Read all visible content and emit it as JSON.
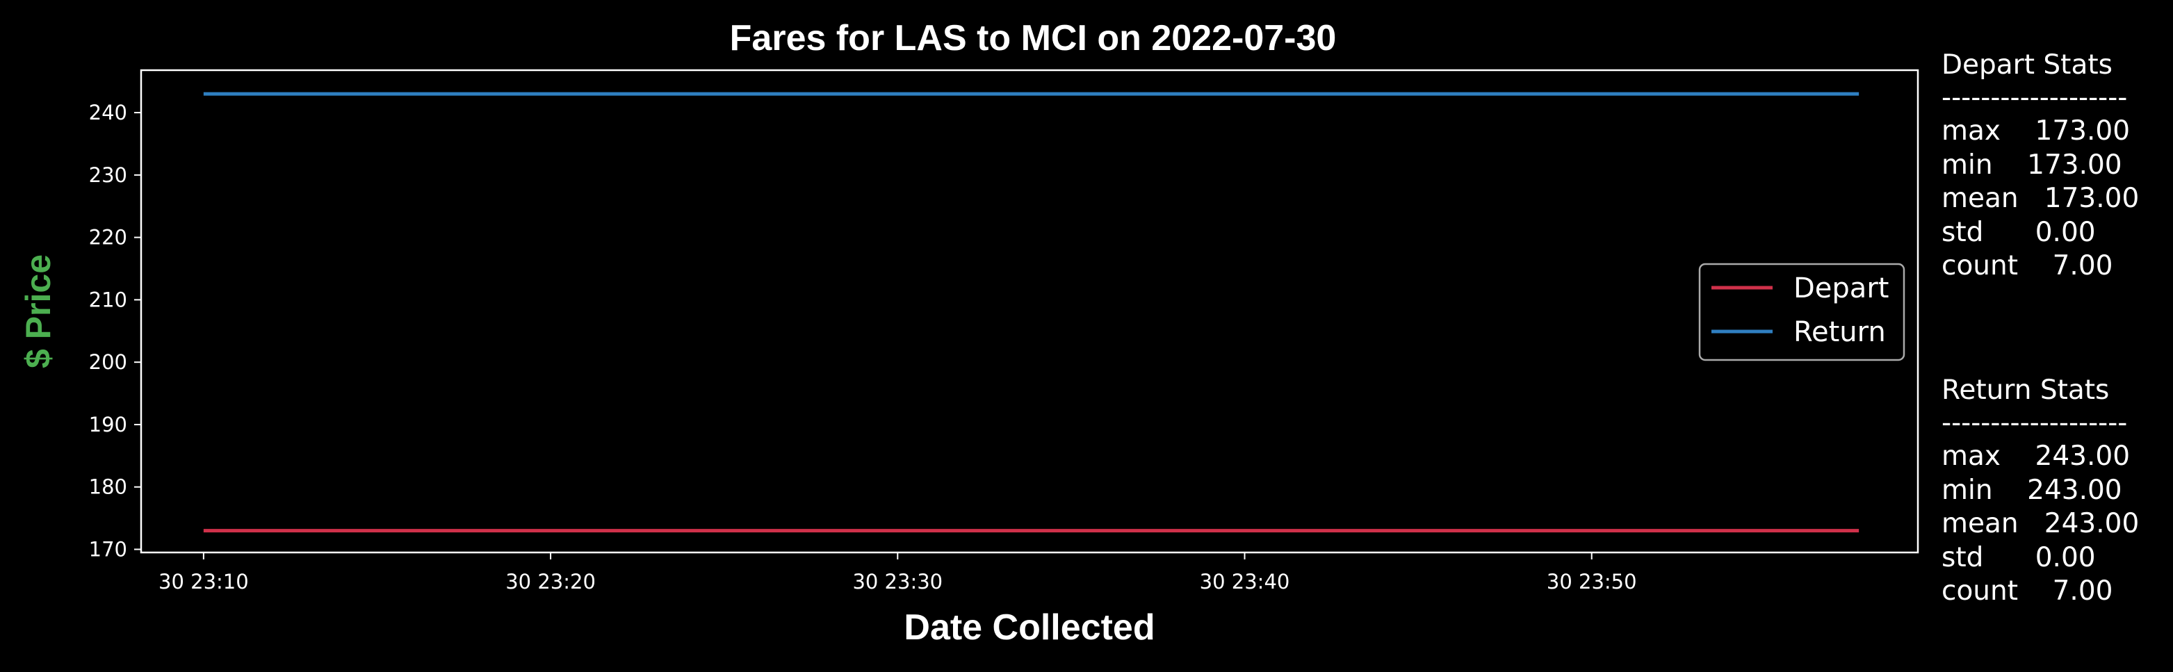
{
  "chart_data": {
    "type": "line",
    "title": "Fares for LAS to MCI on 2022-07-30",
    "xlabel": "Date Collected",
    "ylabel": "$ Price",
    "ylim": [
      169.5,
      246.8
    ],
    "y_ticks": [
      170,
      180,
      190,
      200,
      210,
      220,
      230,
      240
    ],
    "x_start_minute": 8.2,
    "x_end_minute": 59.4,
    "x_ticks": [
      {
        "minute": 10,
        "label": "30 23:10"
      },
      {
        "minute": 20,
        "label": "30 23:20"
      },
      {
        "minute": 30,
        "label": "30 23:30"
      },
      {
        "minute": 40,
        "label": "30 23:40"
      },
      {
        "minute": 50,
        "label": "30 23:50"
      }
    ],
    "grid": false,
    "legend_position": "center-right",
    "series": [
      {
        "name": "Depart",
        "color": "#d0314a",
        "x": [
          10.0,
          57.7
        ],
        "y": [
          173,
          173
        ]
      },
      {
        "name": "Return",
        "color": "#2f7fc1",
        "x": [
          10.0,
          57.7
        ],
        "y": [
          243,
          243
        ]
      }
    ],
    "colors": {
      "title": "#ffffff",
      "ylabel": "#4caf50",
      "xlabel": "#ffffff",
      "background": "#000000"
    }
  },
  "stats_panels": [
    {
      "heading": "Depart Stats",
      "divider": "-------------------",
      "rows": [
        "max    173.00",
        "min    173.00",
        "mean   173.00",
        "std      0.00",
        "count    7.00"
      ]
    },
    {
      "heading": "Return Stats",
      "divider": "-------------------",
      "rows": [
        "max    243.00",
        "min    243.00",
        "mean   243.00",
        "std      0.00",
        "count    7.00"
      ]
    }
  ]
}
